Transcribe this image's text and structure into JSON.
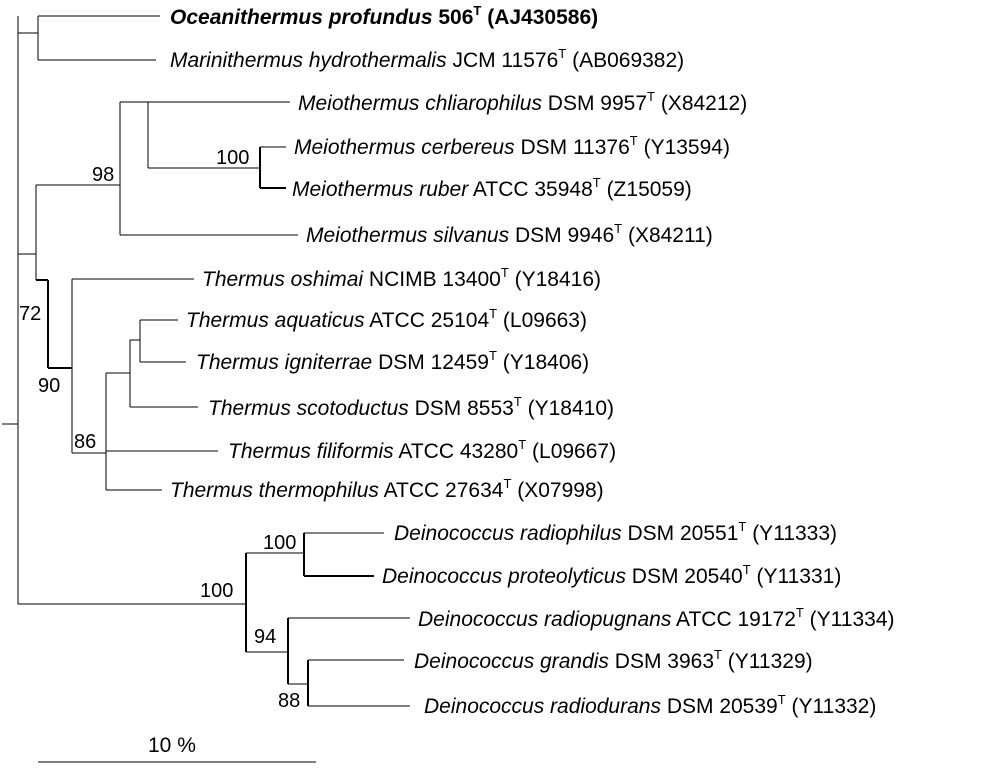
{
  "tree": {
    "leaves": [
      {
        "id": "ocean",
        "genus_species": "Oceanithermus profundus",
        "strain": "506",
        "sup": "T",
        "accession": "(AJ430586)",
        "bold": true
      },
      {
        "id": "marini",
        "genus_species": "Marinithermus hydrothermalis",
        "strain": "JCM 11576",
        "sup": "T",
        "accession": "(AB069382)",
        "bold": false
      },
      {
        "id": "m-chli",
        "genus_species": "Meiothermus chliarophilus",
        "strain": "DSM 9957",
        "sup": "T",
        "accession": "(X84212)",
        "bold": false
      },
      {
        "id": "m-cerb",
        "genus_species": "Meiothermus cerbereus",
        "strain": "DSM 11376",
        "sup": "T",
        "accession": "(Y13594)",
        "bold": false
      },
      {
        "id": "m-rub",
        "genus_species": "Meiothermus ruber",
        "strain": "ATCC 35948",
        "sup": "T",
        "accession": "(Z15059)",
        "bold": false
      },
      {
        "id": "m-silv",
        "genus_species": "Meiothermus silvanus",
        "strain": "DSM 9946",
        "sup": "T",
        "accession": "(X84211)",
        "bold": false
      },
      {
        "id": "t-osh",
        "genus_species": "Thermus oshimai",
        "strain": "NCIMB 13400",
        "sup": "T",
        "accession": "(Y18416)",
        "bold": false
      },
      {
        "id": "t-aqu",
        "genus_species": "Thermus aquaticus",
        "strain": "ATCC 25104",
        "sup": "T",
        "accession": "(L09663)",
        "bold": false
      },
      {
        "id": "t-ign",
        "genus_species": "Thermus igniterrae",
        "strain": "DSM 12459",
        "sup": "T",
        "accession": "(Y18406)",
        "bold": false
      },
      {
        "id": "t-sco",
        "genus_species": "Thermus scotoductus",
        "strain": "DSM 8553",
        "sup": "T",
        "accession": "(Y18410)",
        "bold": false
      },
      {
        "id": "t-fil",
        "genus_species": "Thermus filiformis",
        "strain": "ATCC 43280",
        "sup": "T",
        "accession": "(L09667)",
        "bold": false
      },
      {
        "id": "t-the",
        "genus_species": "Thermus thermophilus",
        "strain": "ATCC 27634",
        "sup": "T",
        "accession": "(X07998)",
        "bold": false
      },
      {
        "id": "d-rph",
        "genus_species": "Deinococcus radiophilus",
        "strain": "DSM 20551",
        "sup": "T",
        "accession": "(Y11333)",
        "bold": false
      },
      {
        "id": "d-pro",
        "genus_species": "Deinococcus proteolyticus",
        "strain": "DSM 20540",
        "sup": "T",
        "accession": "(Y11331)",
        "bold": false
      },
      {
        "id": "d-rpu",
        "genus_species": "Deinococcus radiopugnans",
        "strain": "ATCC 19172",
        "sup": "T",
        "accession": "(Y11334)",
        "bold": false
      },
      {
        "id": "d-gra",
        "genus_species": "Deinococcus grandis",
        "strain": "DSM 3963",
        "sup": "T",
        "accession": "(Y11329)",
        "bold": false
      },
      {
        "id": "d-rdu",
        "genus_species": "Deinococcus radiodurans",
        "strain": "DSM 20539",
        "sup": "T",
        "accession": "(Y11332)",
        "bold": false
      }
    ],
    "bootstrap": [
      "98",
      "100",
      "72",
      "90",
      "86",
      "100",
      "100",
      "94",
      "88"
    ],
    "scale_bar_label": "10 %"
  }
}
